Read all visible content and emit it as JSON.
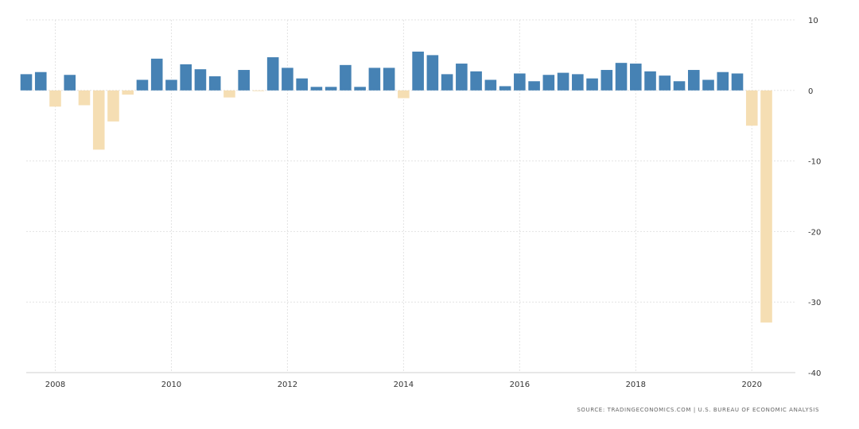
{
  "chart_data": {
    "type": "bar",
    "title": "",
    "xlabel": "",
    "ylabel": "",
    "ylim": [
      -40,
      10
    ],
    "yticks": [
      10,
      0,
      -10,
      -20,
      -30,
      -40
    ],
    "xticks": [
      "2008",
      "2010",
      "2012",
      "2014",
      "2016",
      "2018",
      "2020"
    ],
    "grid": true,
    "colors": {
      "positive": "#4682b4",
      "negative": "#f5deb3",
      "grid": "#e3e3e3"
    },
    "x": [
      "2007-Q3",
      "2007-Q4",
      "2008-Q1",
      "2008-Q2",
      "2008-Q3",
      "2008-Q4",
      "2009-Q1",
      "2009-Q2",
      "2009-Q3",
      "2009-Q4",
      "2010-Q1",
      "2010-Q2",
      "2010-Q3",
      "2010-Q4",
      "2011-Q1",
      "2011-Q2",
      "2011-Q3",
      "2011-Q4",
      "2012-Q1",
      "2012-Q2",
      "2012-Q3",
      "2012-Q4",
      "2013-Q1",
      "2013-Q2",
      "2013-Q3",
      "2013-Q4",
      "2014-Q1",
      "2014-Q2",
      "2014-Q3",
      "2014-Q4",
      "2015-Q1",
      "2015-Q2",
      "2015-Q3",
      "2015-Q4",
      "2016-Q1",
      "2016-Q2",
      "2016-Q3",
      "2016-Q4",
      "2017-Q1",
      "2017-Q2",
      "2017-Q3",
      "2017-Q4",
      "2018-Q1",
      "2018-Q2",
      "2018-Q3",
      "2018-Q4",
      "2019-Q1",
      "2019-Q2",
      "2019-Q3",
      "2019-Q4",
      "2020-Q1",
      "2020-Q2"
    ],
    "values": [
      2.3,
      2.6,
      -2.3,
      2.2,
      -2.1,
      -8.4,
      -4.4,
      -0.6,
      1.5,
      4.5,
      1.5,
      3.7,
      3.0,
      2.0,
      -1.0,
      2.9,
      -0.1,
      4.7,
      3.2,
      1.7,
      0.5,
      0.5,
      3.6,
      0.5,
      3.2,
      3.2,
      -1.1,
      5.5,
      5.0,
      2.3,
      3.8,
      2.7,
      1.5,
      0.6,
      2.4,
      1.3,
      2.2,
      2.5,
      2.3,
      1.7,
      2.9,
      3.9,
      3.8,
      2.7,
      2.1,
      1.3,
      2.9,
      1.5,
      2.6,
      2.4,
      -5.0,
      -32.9
    ]
  },
  "source": "SOURCE: TRADINGECONOMICS.COM | U.S. BUREAU OF ECONOMIC ANALYSIS"
}
